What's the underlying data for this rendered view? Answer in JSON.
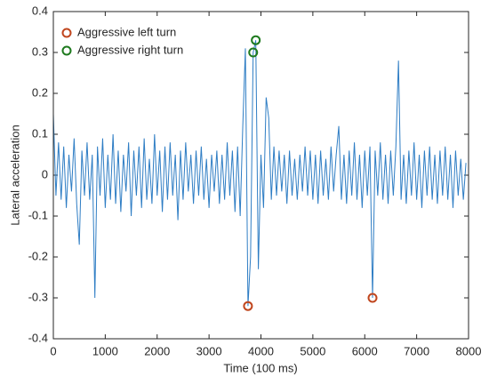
{
  "chart_data": {
    "type": "line",
    "xlabel": "Time (100 ms)",
    "ylabel": "Lateral acceleration",
    "xlim": [
      0,
      8000
    ],
    "xticks": [
      0,
      1000,
      2000,
      3000,
      4000,
      5000,
      6000,
      7000,
      8000
    ],
    "ylim": [
      -0.4,
      0.4
    ],
    "yticks": [
      -0.4,
      -0.3,
      -0.2,
      -0.1,
      0,
      0.1,
      0.2,
      0.3,
      0.4
    ],
    "grid": false,
    "legend": "upper left",
    "series": [
      {
        "color": "#2e7dc4",
        "type": "line",
        "x": [
          0,
          50,
          100,
          150,
          200,
          250,
          300,
          350,
          400,
          450,
          500,
          550,
          600,
          650,
          700,
          750,
          800,
          850,
          900,
          950,
          1000,
          1050,
          1100,
          1150,
          1200,
          1250,
          1300,
          1350,
          1400,
          1450,
          1500,
          1550,
          1600,
          1650,
          1700,
          1750,
          1800,
          1850,
          1900,
          1950,
          2000,
          2050,
          2100,
          2150,
          2200,
          2250,
          2300,
          2350,
          2400,
          2450,
          2500,
          2550,
          2600,
          2650,
          2700,
          2750,
          2800,
          2850,
          2900,
          2950,
          3000,
          3050,
          3100,
          3150,
          3200,
          3250,
          3300,
          3350,
          3400,
          3450,
          3500,
          3550,
          3600,
          3650,
          3700,
          3750,
          3800,
          3850,
          3900,
          3950,
          4000,
          4050,
          4100,
          4150,
          4200,
          4250,
          4300,
          4350,
          4400,
          4450,
          4500,
          4550,
          4600,
          4650,
          4700,
          4750,
          4800,
          4850,
          4900,
          4950,
          5000,
          5050,
          5100,
          5150,
          5200,
          5250,
          5300,
          5350,
          5400,
          5450,
          5500,
          5550,
          5600,
          5650,
          5700,
          5750,
          5800,
          5850,
          5900,
          5950,
          6000,
          6050,
          6100,
          6150,
          6200,
          6250,
          6300,
          6350,
          6400,
          6450,
          6500,
          6550,
          6600,
          6650,
          6700,
          6750,
          6800,
          6850,
          6900,
          6950,
          7000,
          7050,
          7100,
          7150,
          7200,
          7250,
          7300,
          7350,
          7400,
          7450,
          7500,
          7550,
          7600,
          7650,
          7700,
          7750,
          7800,
          7850,
          7900,
          7950
        ],
        "values": [
          0.15,
          -0.05,
          0.08,
          -0.06,
          0.07,
          -0.08,
          0.05,
          -0.04,
          0.09,
          -0.07,
          -0.17,
          0.06,
          -0.05,
          0.08,
          -0.06,
          0.05,
          -0.3,
          0.07,
          -0.05,
          0.09,
          -0.08,
          0.05,
          -0.06,
          0.1,
          -0.07,
          0.06,
          -0.09,
          0.05,
          -0.04,
          0.08,
          -0.1,
          0.06,
          -0.05,
          0.07,
          -0.08,
          0.09,
          -0.06,
          0.04,
          -0.07,
          0.1,
          -0.05,
          0.06,
          -0.09,
          0.07,
          -0.06,
          0.08,
          -0.05,
          0.05,
          -0.11,
          0.06,
          -0.06,
          0.08,
          -0.04,
          0.05,
          -0.07,
          0.06,
          -0.05,
          0.07,
          -0.06,
          0.04,
          -0.08,
          0.05,
          -0.04,
          0.06,
          -0.07,
          0.05,
          -0.06,
          0.08,
          -0.05,
          0.06,
          -0.09,
          0.07,
          -0.1,
          0.12,
          0.31,
          -0.32,
          -0.2,
          0.3,
          0.33,
          -0.23,
          0.05,
          -0.08,
          0.19,
          0.14,
          -0.06,
          0.07,
          -0.05,
          0.06,
          -0.04,
          0.05,
          -0.07,
          0.06,
          -0.05,
          0.04,
          -0.06,
          0.05,
          -0.04,
          0.07,
          -0.05,
          0.06,
          -0.06,
          0.05,
          -0.07,
          0.06,
          -0.05,
          0.04,
          -0.06,
          0.07,
          -0.04,
          0.05,
          0.12,
          -0.06,
          0.05,
          -0.07,
          0.06,
          -0.05,
          0.08,
          -0.06,
          0.05,
          -0.08,
          0.06,
          -0.05,
          0.07,
          -0.3,
          0.06,
          -0.05,
          0.08,
          -0.06,
          0.05,
          -0.07,
          0.06,
          -0.05,
          0.07,
          0.28,
          -0.06,
          0.05,
          -0.07,
          0.06,
          -0.05,
          0.08,
          -0.06,
          0.05,
          -0.08,
          0.06,
          -0.05,
          0.07,
          -0.06,
          0.05,
          -0.07,
          0.06,
          -0.05,
          0.07,
          -0.06,
          0.05,
          -0.08,
          0.06,
          -0.05,
          0.04,
          -0.06,
          0.03
        ]
      },
      {
        "name": "Aggressive left turn",
        "color": "#c0461e",
        "type": "scatter",
        "x": [
          3750,
          6150
        ],
        "values": [
          -0.32,
          -0.3
        ]
      },
      {
        "name": "Aggressive right turn",
        "color": "#1e7a1e",
        "type": "scatter",
        "x": [
          3850,
          3900
        ],
        "values": [
          0.3,
          0.33
        ]
      }
    ]
  }
}
